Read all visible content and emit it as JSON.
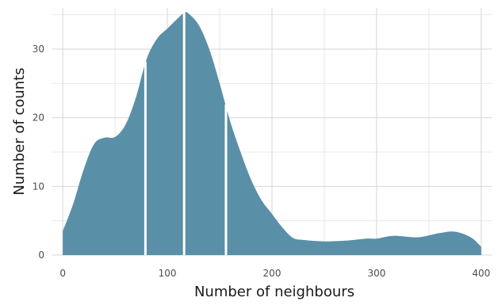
{
  "chart_data": {
    "type": "area",
    "xlabel": "Number of neighbours",
    "ylabel": "Number of counts",
    "xlim": [
      -10,
      410
    ],
    "ylim": [
      0,
      36
    ],
    "x_ticks": [
      0,
      100,
      200,
      300,
      400
    ],
    "y_ticks": [
      0,
      10,
      20,
      30
    ],
    "grid": true,
    "fill_color": "#5a8fa8",
    "divider_color": "#ffffff",
    "dividers_x": [
      79,
      116,
      156
    ],
    "x": [
      0,
      10,
      20,
      30,
      40,
      50,
      60,
      70,
      80,
      90,
      100,
      110,
      116,
      120,
      130,
      140,
      150,
      160,
      170,
      180,
      190,
      200,
      210,
      220,
      230,
      250,
      270,
      290,
      300,
      310,
      320,
      340,
      360,
      375,
      390,
      400
    ],
    "y": [
      3.5,
      7.5,
      12.5,
      16.2,
      17.1,
      17.2,
      19,
      23,
      28.5,
      31.5,
      33,
      34.5,
      35.3,
      35.2,
      33.5,
      30,
      25,
      19.5,
      15,
      11,
      8,
      6,
      4,
      2.5,
      2.2,
      2.0,
      2.1,
      2.4,
      2.4,
      2.7,
      2.8,
      2.6,
      3.2,
      3.4,
      2.6,
      1.2
    ]
  }
}
